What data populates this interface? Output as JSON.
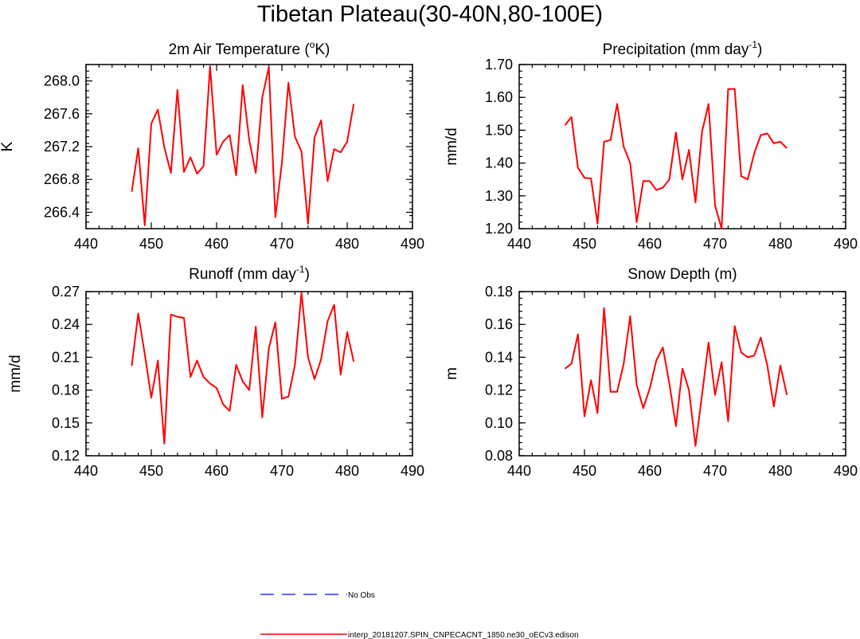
{
  "title": "Tibetan Plateau(30-40N,80-100E)",
  "chart_data": [
    {
      "type": "line",
      "title_main": "2m Air Temperature (",
      "title_sup": "o",
      "title_tail": "K)",
      "ylabel": "K",
      "xlim": [
        440,
        490
      ],
      "ylim": [
        266.2,
        268.2
      ],
      "xticks": [
        440,
        450,
        460,
        470,
        480,
        490
      ],
      "yticks": [
        266.4,
        266.8,
        267.2,
        267.6,
        268.0
      ],
      "ytick_labels": [
        "266.4",
        "266.8",
        "267.2",
        "267.6",
        "268.0"
      ],
      "series": [
        {
          "name": "interp_20181207.SPIN_CNPECACNT_1850.ne30_oECv3.edison",
          "color": "#ff0000",
          "x": [
            447,
            448,
            449,
            450,
            451,
            452,
            453,
            454,
            455,
            456,
            457,
            458,
            459,
            460,
            461,
            462,
            463,
            464,
            465,
            466,
            467,
            468,
            469,
            470,
            471,
            472,
            473,
            474,
            475,
            476,
            477,
            478,
            479,
            480,
            481
          ],
          "y": [
            266.65,
            267.18,
            266.24,
            267.48,
            267.65,
            267.19,
            266.88,
            267.89,
            266.89,
            267.07,
            266.87,
            266.96,
            268.18,
            267.1,
            267.26,
            267.34,
            266.85,
            267.95,
            267.28,
            266.88,
            267.8,
            268.17,
            266.34,
            267.0,
            267.98,
            267.32,
            267.14,
            266.26,
            267.31,
            267.52,
            266.78,
            267.17,
            267.13,
            267.26,
            267.72
          ]
        }
      ]
    },
    {
      "type": "line",
      "title_main": "Precipitation (mm day",
      "title_sup": "-1",
      "title_tail": ")",
      "ylabel": "mm/d",
      "xlim": [
        440,
        490
      ],
      "ylim": [
        1.2,
        1.7
      ],
      "xticks": [
        440,
        450,
        460,
        470,
        480,
        490
      ],
      "yticks": [
        1.2,
        1.3,
        1.4,
        1.5,
        1.6,
        1.7
      ],
      "ytick_labels": [
        "1.20",
        "1.30",
        "1.40",
        "1.50",
        "1.60",
        "1.70"
      ],
      "series": [
        {
          "name": "interp_20181207.SPIN_CNPECACNT_1850.ne30_oECv3.edison",
          "color": "#ff0000",
          "x": [
            447,
            448,
            449,
            450,
            451,
            452,
            453,
            454,
            455,
            456,
            457,
            458,
            459,
            460,
            461,
            462,
            463,
            464,
            465,
            466,
            467,
            468,
            469,
            470,
            471,
            472,
            473,
            474,
            475,
            476,
            477,
            478,
            479,
            480,
            481
          ],
          "y": [
            1.515,
            1.54,
            1.385,
            1.355,
            1.353,
            1.215,
            1.465,
            1.47,
            1.58,
            1.45,
            1.4,
            1.22,
            1.345,
            1.345,
            1.318,
            1.325,
            1.35,
            1.493,
            1.35,
            1.44,
            1.28,
            1.495,
            1.58,
            1.27,
            1.2,
            1.625,
            1.626,
            1.36,
            1.35,
            1.43,
            1.485,
            1.49,
            1.46,
            1.465,
            1.445
          ]
        }
      ]
    },
    {
      "type": "line",
      "title_main": "Runoff (mm day",
      "title_sup": "-1",
      "title_tail": ")",
      "ylabel": "mm/d",
      "xlim": [
        440,
        490
      ],
      "ylim": [
        0.12,
        0.27
      ],
      "xticks": [
        440,
        450,
        460,
        470,
        480,
        490
      ],
      "yticks": [
        0.12,
        0.15,
        0.18,
        0.21,
        0.24,
        0.27
      ],
      "ytick_labels": [
        "0.12",
        "0.15",
        "0.18",
        "0.21",
        "0.24",
        "0.27"
      ],
      "series": [
        {
          "name": "interp_20181207.SPIN_CNPECACNT_1850.ne30_oECv3.edison",
          "color": "#ff0000",
          "x": [
            447,
            448,
            449,
            450,
            451,
            452,
            453,
            454,
            455,
            456,
            457,
            458,
            459,
            460,
            461,
            462,
            463,
            464,
            465,
            466,
            467,
            468,
            469,
            470,
            471,
            472,
            473,
            474,
            475,
            476,
            477,
            478,
            479,
            480,
            481
          ],
          "y": [
            0.202,
            0.25,
            0.213,
            0.173,
            0.207,
            0.131,
            0.249,
            0.247,
            0.246,
            0.192,
            0.207,
            0.192,
            0.186,
            0.182,
            0.167,
            0.161,
            0.203,
            0.188,
            0.18,
            0.238,
            0.155,
            0.218,
            0.242,
            0.172,
            0.174,
            0.203,
            0.269,
            0.21,
            0.19,
            0.208,
            0.243,
            0.258,
            0.194,
            0.233,
            0.206
          ]
        }
      ]
    },
    {
      "type": "line",
      "title_main": "Snow Depth (m)",
      "title_sup": "",
      "title_tail": "",
      "ylabel": "m",
      "xlim": [
        440,
        490
      ],
      "ylim": [
        0.08,
        0.18
      ],
      "xticks": [
        440,
        450,
        460,
        470,
        480,
        490
      ],
      "yticks": [
        0.08,
        0.1,
        0.12,
        0.14,
        0.16,
        0.18
      ],
      "ytick_labels": [
        "0.08",
        "0.10",
        "0.12",
        "0.14",
        "0.16",
        "0.18"
      ],
      "series": [
        {
          "name": "interp_20181207.SPIN_CNPECACNT_1850.ne30_oECv3.edison",
          "color": "#ff0000",
          "x": [
            447,
            448,
            449,
            450,
            451,
            452,
            453,
            454,
            455,
            456,
            457,
            458,
            459,
            460,
            461,
            462,
            463,
            464,
            465,
            466,
            467,
            468,
            469,
            470,
            471,
            472,
            473,
            474,
            475,
            476,
            477,
            478,
            479,
            480,
            481
          ],
          "y": [
            0.133,
            0.136,
            0.154,
            0.104,
            0.126,
            0.106,
            0.17,
            0.119,
            0.119,
            0.136,
            0.165,
            0.123,
            0.109,
            0.121,
            0.138,
            0.146,
            0.124,
            0.098,
            0.133,
            0.12,
            0.086,
            0.117,
            0.149,
            0.117,
            0.137,
            0.101,
            0.159,
            0.143,
            0.14,
            0.141,
            0.152,
            0.135,
            0.11,
            0.135,
            0.117
          ]
        }
      ]
    }
  ],
  "legend": [
    {
      "label": "No Obs",
      "color": "#3333ff",
      "style": "dashed"
    },
    {
      "label": "interp_20181207.SPIN_CNPECACNT_1850.ne30_oECv3.edison",
      "color": "#ff0000",
      "style": "solid"
    }
  ]
}
